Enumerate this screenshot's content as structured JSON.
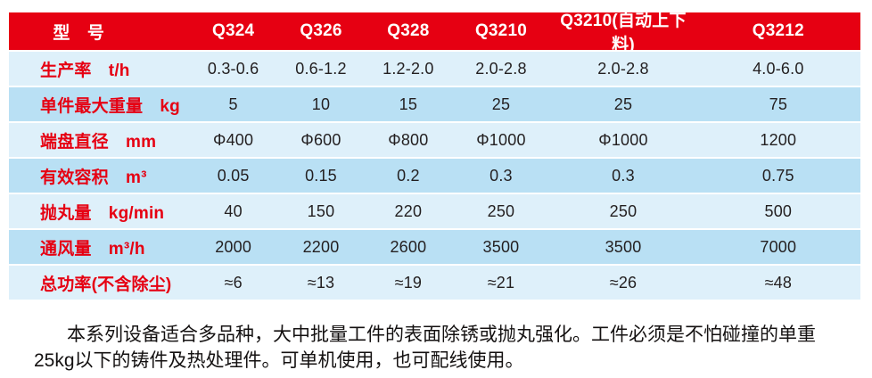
{
  "colors": {
    "header_bg": "#e60012",
    "header_text": "#ffffff",
    "row_light_bg": "#def0fa",
    "row_medium_bg": "#b9e0f4",
    "row_label_text": "#e60012",
    "value_text": "#231f20"
  },
  "table": {
    "header": [
      "型　号",
      "Q324",
      "Q326",
      "Q328",
      "Q3210",
      "Q3210(自动上下料)",
      "Q3212"
    ],
    "rows": [
      {
        "label": "生产率　t/h",
        "values": [
          "0.3-0.6",
          "0.6-1.2",
          "1.2-2.0",
          "2.0-2.8",
          "2.0-2.8",
          "4.0-6.0"
        ]
      },
      {
        "label": "单件最大重量　kg",
        "values": [
          "5",
          "10",
          "15",
          "25",
          "25",
          "75"
        ]
      },
      {
        "label": "端盘直径　mm",
        "values": [
          "Φ400",
          "Φ600",
          "Φ800",
          "Φ1000",
          "Φ1000",
          "1200"
        ]
      },
      {
        "label": "有效容积　m³",
        "values": [
          "0.05",
          "0.15",
          "0.2",
          "0.3",
          "0.3",
          "0.75"
        ]
      },
      {
        "label": "抛丸量　kg/min",
        "values": [
          "40",
          "150",
          "220",
          "250",
          "250",
          "500"
        ]
      },
      {
        "label": "通风量　m³/h",
        "values": [
          "2000",
          "2200",
          "2600",
          "3500",
          "3500",
          "7000"
        ]
      },
      {
        "label": "总功率(不含除尘)",
        "values": [
          "≈6",
          "≈13",
          "≈19",
          "≈21",
          "≈26",
          "≈48"
        ]
      }
    ]
  },
  "note": {
    "lines": [
      "本系列设备适合多品种，大中批量工件的表面除锈或抛丸强化。工件必须是不怕碰撞的单重",
      "25kg以下的铸件及热处理件。可单机使用，也可配线使用。"
    ]
  }
}
